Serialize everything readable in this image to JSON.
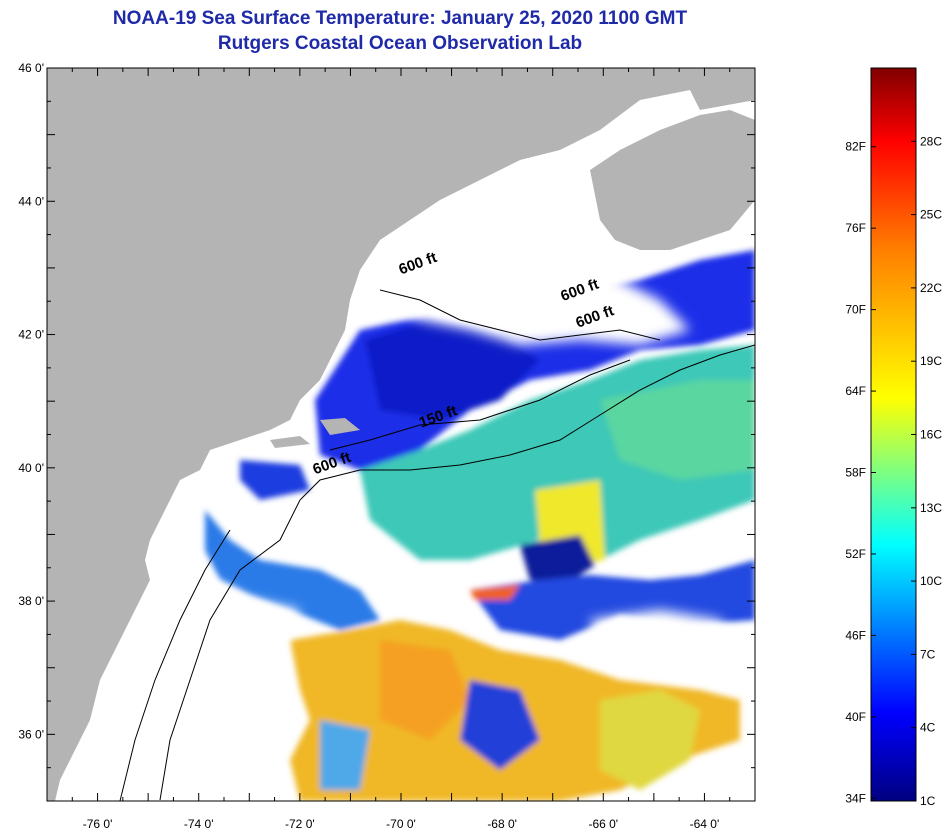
{
  "header": {
    "title": "NOAA-19 Sea Surface Temperature:  January 25, 2020 1100 GMT",
    "subtitle": "Rutgers Coastal Ocean Observation Lab"
  },
  "axes": {
    "lat_labels": [
      "46 0'",
      "44 0'",
      "42 0'",
      "40 0'",
      "38 0'",
      "36 0'"
    ],
    "lat_values": [
      46,
      44,
      42,
      40,
      38,
      36
    ],
    "lon_labels": [
      "-76 0'",
      "-74 0'",
      "-72 0'",
      "-70 0'",
      "-68 0'",
      "-66 0'",
      "-64 0'"
    ],
    "lon_values": [
      -76,
      -74,
      -72,
      -70,
      -68,
      -66,
      -64
    ],
    "lat_range": [
      35,
      46
    ],
    "lon_range": [
      -77,
      -63
    ]
  },
  "depth_labels": [
    {
      "text": "600 ft",
      "lon": -70.0,
      "lat": 42.9
    },
    {
      "text": "600 ft",
      "lon": -66.8,
      "lat": 42.5
    },
    {
      "text": "600 ft",
      "lon": -66.5,
      "lat": 42.1
    },
    {
      "text": "150 ft",
      "lon": -69.6,
      "lat": 40.6
    },
    {
      "text": "600 ft",
      "lon": -71.7,
      "lat": 39.9
    }
  ],
  "colorbar": {
    "fahrenheit": [
      "82F",
      "76F",
      "70F",
      "64F",
      "58F",
      "52F",
      "46F",
      "40F",
      "34F"
    ],
    "fahrenheit_values": [
      82,
      76,
      70,
      64,
      58,
      52,
      46,
      40,
      34
    ],
    "celsius": [
      "28C",
      "25C",
      "22C",
      "19C",
      "16C",
      "13C",
      "10C",
      "7C",
      "4C",
      "1C"
    ],
    "celsius_values": [
      28,
      25,
      22,
      19,
      16,
      13,
      10,
      7,
      4,
      1
    ],
    "range_c": [
      1,
      31
    ]
  },
  "colors": {
    "land": "#b4b4b4",
    "cloud": "#ffffff",
    "title": "#1f2aa8"
  }
}
